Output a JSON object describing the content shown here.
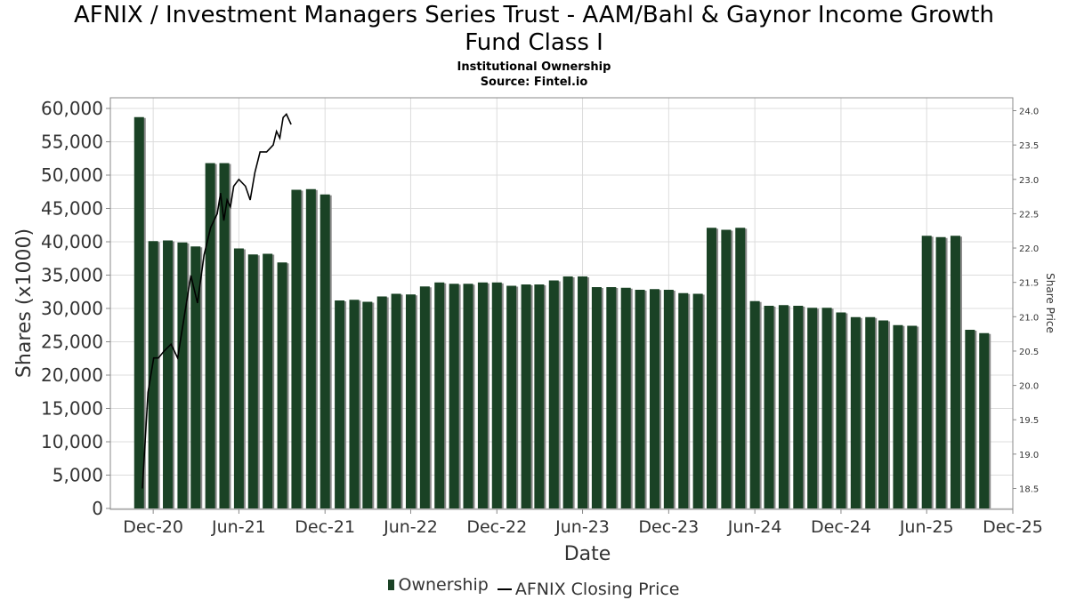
{
  "header": {
    "title_line1": "AFNIX / Investment Managers Series Trust - AAM/Bahl & Gaynor Income Growth",
    "title_line2": "Fund Class I",
    "subtitle": "Institutional Ownership",
    "source": "Source: Fintel.io"
  },
  "legend": {
    "ownership": "Ownership",
    "price": "AFNIX Closing Price"
  },
  "colors": {
    "bar": "#1a4225",
    "bar_shadow": "#8a8a8a",
    "price_line": "#000000",
    "grid": "#dcdcdc"
  },
  "chart_data": {
    "type": "bar",
    "title": "AFNIX / Investment Managers Series Trust - AAM/Bahl & Gaynor Income Growth Fund Class I",
    "xlabel": "Date",
    "ylabel": "Shares (x1000)",
    "y2label": "Share Price",
    "ylim": [
      0,
      60000
    ],
    "y2lim": [
      18.3,
      24.1
    ],
    "xlim": [
      "2020-09-01",
      "2025-12-01"
    ],
    "grid": true,
    "legend_position": "bottom",
    "x_ticks": [
      {
        "date": "2020-12-01",
        "label": "Dec-20"
      },
      {
        "date": "2021-06-01",
        "label": "Jun-21"
      },
      {
        "date": "2021-12-01",
        "label": "Dec-21"
      },
      {
        "date": "2022-06-01",
        "label": "Jun-22"
      },
      {
        "date": "2022-12-01",
        "label": "Dec-22"
      },
      {
        "date": "2023-06-01",
        "label": "Jun-23"
      },
      {
        "date": "2023-12-01",
        "label": "Dec-23"
      },
      {
        "date": "2024-06-01",
        "label": "Jun-24"
      },
      {
        "date": "2024-12-01",
        "label": "Dec-24"
      },
      {
        "date": "2025-06-01",
        "label": "Jun-25"
      },
      {
        "date": "2025-12-01",
        "label": "Dec-25"
      }
    ],
    "y_ticks": [
      {
        "value": 0,
        "label": "0"
      },
      {
        "value": 5000,
        "label": "5,000"
      },
      {
        "value": 10000,
        "label": "10,000"
      },
      {
        "value": 15000,
        "label": "15,000"
      },
      {
        "value": 20000,
        "label": "20,000"
      },
      {
        "value": 25000,
        "label": "25,000"
      },
      {
        "value": 30000,
        "label": "30,000"
      },
      {
        "value": 35000,
        "label": "35,000"
      },
      {
        "value": 40000,
        "label": "40,000"
      },
      {
        "value": 45000,
        "label": "45,000"
      },
      {
        "value": 50000,
        "label": "50,000"
      },
      {
        "value": 55000,
        "label": "55,000"
      },
      {
        "value": 60000,
        "label": "60,000"
      }
    ],
    "y2_ticks": [
      {
        "value": 18.5,
        "label": "18.5"
      },
      {
        "value": 19.0,
        "label": "19.0"
      },
      {
        "value": 19.5,
        "label": "19.5"
      },
      {
        "value": 20.0,
        "label": "20.0"
      },
      {
        "value": 20.5,
        "label": "20.5"
      },
      {
        "value": 21.0,
        "label": "21.0"
      },
      {
        "value": 21.5,
        "label": "21.5"
      },
      {
        "value": 22.0,
        "label": "22.0"
      },
      {
        "value": 22.5,
        "label": "22.5"
      },
      {
        "value": 23.0,
        "label": "23.0"
      },
      {
        "value": 23.5,
        "label": "23.5"
      },
      {
        "value": 24.0,
        "label": "24.0"
      }
    ],
    "series": [
      {
        "name": "Ownership",
        "type": "bar",
        "points": [
          {
            "date": "2020-11-01",
            "value": 58700
          },
          {
            "date": "2020-12-01",
            "value": 40100
          },
          {
            "date": "2021-01-01",
            "value": 40200
          },
          {
            "date": "2021-02-01",
            "value": 39900
          },
          {
            "date": "2021-03-01",
            "value": 39300
          },
          {
            "date": "2021-04-01",
            "value": 51800
          },
          {
            "date": "2021-05-01",
            "value": 51800
          },
          {
            "date": "2021-06-01",
            "value": 39000
          },
          {
            "date": "2021-07-01",
            "value": 38100
          },
          {
            "date": "2021-08-01",
            "value": 38200
          },
          {
            "date": "2021-09-01",
            "value": 36900
          },
          {
            "date": "2021-10-01",
            "value": 47800
          },
          {
            "date": "2021-11-01",
            "value": 47900
          },
          {
            "date": "2021-12-01",
            "value": 47100
          },
          {
            "date": "2022-01-01",
            "value": 31200
          },
          {
            "date": "2022-02-01",
            "value": 31300
          },
          {
            "date": "2022-03-01",
            "value": 31000
          },
          {
            "date": "2022-04-01",
            "value": 31800
          },
          {
            "date": "2022-05-01",
            "value": 32200
          },
          {
            "date": "2022-06-01",
            "value": 32100
          },
          {
            "date": "2022-07-01",
            "value": 33300
          },
          {
            "date": "2022-08-01",
            "value": 33900
          },
          {
            "date": "2022-09-01",
            "value": 33700
          },
          {
            "date": "2022-10-01",
            "value": 33700
          },
          {
            "date": "2022-11-01",
            "value": 33900
          },
          {
            "date": "2022-12-01",
            "value": 33900
          },
          {
            "date": "2023-01-01",
            "value": 33400
          },
          {
            "date": "2023-02-01",
            "value": 33600
          },
          {
            "date": "2023-03-01",
            "value": 33600
          },
          {
            "date": "2023-04-01",
            "value": 34200
          },
          {
            "date": "2023-05-01",
            "value": 34800
          },
          {
            "date": "2023-06-01",
            "value": 34800
          },
          {
            "date": "2023-07-01",
            "value": 33200
          },
          {
            "date": "2023-08-01",
            "value": 33200
          },
          {
            "date": "2023-09-01",
            "value": 33100
          },
          {
            "date": "2023-10-01",
            "value": 32800
          },
          {
            "date": "2023-11-01",
            "value": 32900
          },
          {
            "date": "2023-12-01",
            "value": 32800
          },
          {
            "date": "2024-01-01",
            "value": 32300
          },
          {
            "date": "2024-02-01",
            "value": 32200
          },
          {
            "date": "2024-03-01",
            "value": 42100
          },
          {
            "date": "2024-04-01",
            "value": 41800
          },
          {
            "date": "2024-05-01",
            "value": 42100
          },
          {
            "date": "2024-06-01",
            "value": 31100
          },
          {
            "date": "2024-07-01",
            "value": 30400
          },
          {
            "date": "2024-08-01",
            "value": 30500
          },
          {
            "date": "2024-09-01",
            "value": 30400
          },
          {
            "date": "2024-10-01",
            "value": 30100
          },
          {
            "date": "2024-11-01",
            "value": 30100
          },
          {
            "date": "2024-12-01",
            "value": 29400
          },
          {
            "date": "2025-01-01",
            "value": 28700
          },
          {
            "date": "2025-02-01",
            "value": 28700
          },
          {
            "date": "2025-03-01",
            "value": 28200
          },
          {
            "date": "2025-04-01",
            "value": 27500
          },
          {
            "date": "2025-05-01",
            "value": 27400
          },
          {
            "date": "2025-06-01",
            "value": 40900
          },
          {
            "date": "2025-07-01",
            "value": 40700
          },
          {
            "date": "2025-08-01",
            "value": 40900
          },
          {
            "date": "2025-09-01",
            "value": 26800
          },
          {
            "date": "2025-10-01",
            "value": 26300
          }
        ]
      },
      {
        "name": "AFNIX Closing Price",
        "type": "line",
        "axis": "right",
        "points": [
          {
            "date": "2020-11-08",
            "value": 18.5
          },
          {
            "date": "2020-11-20",
            "value": 19.9
          },
          {
            "date": "2020-12-02",
            "value": 20.4
          },
          {
            "date": "2020-12-12",
            "value": 20.4
          },
          {
            "date": "2020-12-24",
            "value": 20.5
          },
          {
            "date": "2021-01-08",
            "value": 20.6
          },
          {
            "date": "2021-01-22",
            "value": 20.4
          },
          {
            "date": "2021-02-05",
            "value": 21.0
          },
          {
            "date": "2021-02-19",
            "value": 21.6
          },
          {
            "date": "2021-03-05",
            "value": 21.2
          },
          {
            "date": "2021-03-19",
            "value": 21.9
          },
          {
            "date": "2021-04-02",
            "value": 22.3
          },
          {
            "date": "2021-04-16",
            "value": 22.5
          },
          {
            "date": "2021-04-23",
            "value": 22.8
          },
          {
            "date": "2021-04-30",
            "value": 22.4
          },
          {
            "date": "2021-05-07",
            "value": 22.7
          },
          {
            "date": "2021-05-14",
            "value": 22.6
          },
          {
            "date": "2021-05-21",
            "value": 22.9
          },
          {
            "date": "2021-06-01",
            "value": 23.0
          },
          {
            "date": "2021-06-15",
            "value": 22.9
          },
          {
            "date": "2021-06-25",
            "value": 22.7
          },
          {
            "date": "2021-07-05",
            "value": 23.1
          },
          {
            "date": "2021-07-16",
            "value": 23.4
          },
          {
            "date": "2021-07-30",
            "value": 23.4
          },
          {
            "date": "2021-08-13",
            "value": 23.5
          },
          {
            "date": "2021-08-20",
            "value": 23.7
          },
          {
            "date": "2021-08-27",
            "value": 23.6
          },
          {
            "date": "2021-09-03",
            "value": 23.9
          },
          {
            "date": "2021-09-10",
            "value": 23.95
          },
          {
            "date": "2021-09-20",
            "value": 23.8
          }
        ]
      }
    ]
  }
}
